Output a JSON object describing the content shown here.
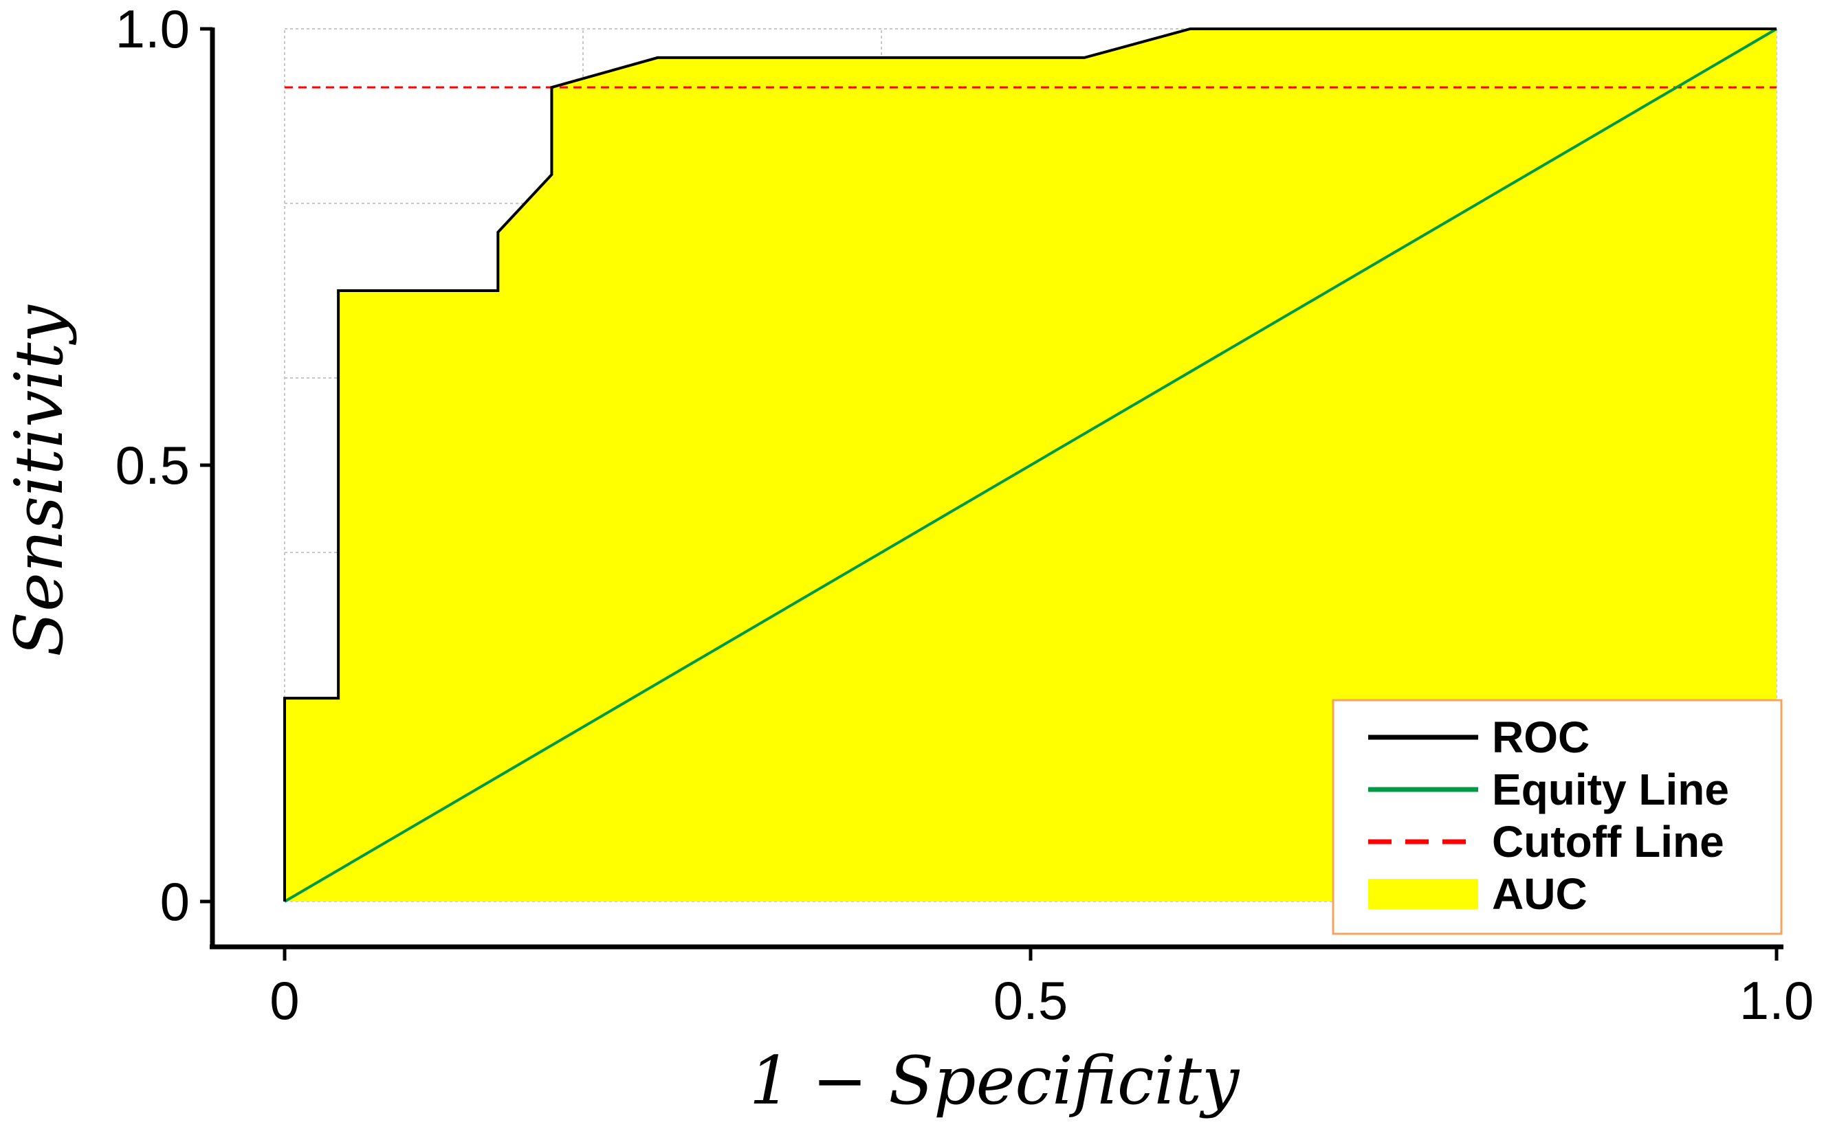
{
  "chart_data": {
    "type": "line",
    "xlabel": "1 − Specificity",
    "ylabel": "Sensitivity",
    "xlim": [
      0,
      1.0
    ],
    "ylim": [
      0,
      1.0
    ],
    "x_ticks": [
      "0",
      "0.5",
      "1.0"
    ],
    "y_ticks": [
      "0",
      "0.5",
      "1.0"
    ],
    "grid": true,
    "legend_position": "bottom-right",
    "series": [
      {
        "name": "ROC",
        "color": "#000000",
        "x": [
          0,
          0,
          0.036,
          0.036,
          0.143,
          0.143,
          0.179,
          0.179,
          0.25,
          0.536,
          0.607,
          1.0
        ],
        "y": [
          0,
          0.233,
          0.233,
          0.7,
          0.7,
          0.767,
          0.833,
          0.933,
          0.967,
          0.967,
          1.0,
          1.0
        ]
      },
      {
        "name": "Equity Line",
        "color": "#009944",
        "x": [
          0,
          1.0
        ],
        "y": [
          0,
          1.0
        ]
      },
      {
        "name": "Cutoff Line",
        "color": "#ff0000",
        "style": "dashed",
        "x": [
          0,
          1.0
        ],
        "y": [
          0.933,
          0.933
        ]
      },
      {
        "name": "AUC",
        "color": "#ffff00",
        "style": "area"
      }
    ]
  }
}
